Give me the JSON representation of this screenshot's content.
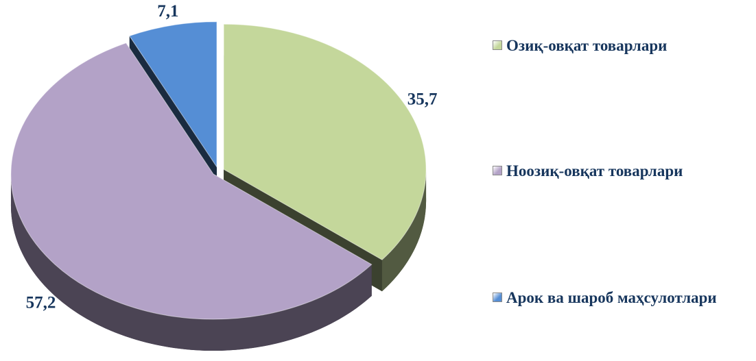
{
  "chart_data": {
    "type": "pie",
    "categories": [
      "Озиқ-овқат товарлари",
      "Ноозиқ-овқат товарлари",
      "Арок ва шароб маҳсулотлари"
    ],
    "values": [
      35.7,
      57.2,
      7.1
    ],
    "value_labels": [
      "35,7",
      "57,2",
      "7,1"
    ],
    "colors": [
      "#c4d79b",
      "#b3a2c7",
      "#558ed5"
    ],
    "legend": "right"
  }
}
